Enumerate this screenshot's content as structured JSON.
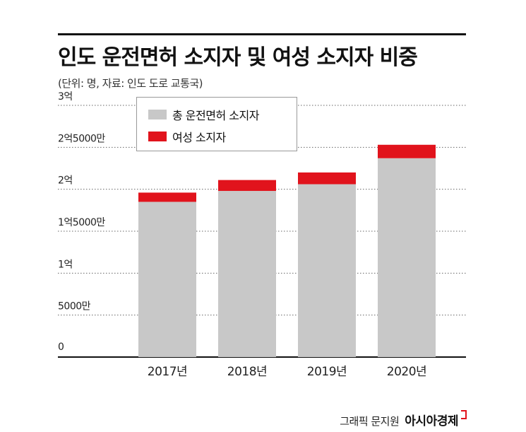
{
  "header": {
    "title": "인도 운전면허 소지자 및 여성 소지자 비중",
    "subtitle": "(단위: 명, 자료: 인도 도로 교통국)"
  },
  "legend": {
    "items": [
      {
        "label": "총 운전면허 소지자",
        "color": "#c8c8c8"
      },
      {
        "label": "여성 소지자",
        "color": "#e1131c"
      }
    ]
  },
  "chart_data": {
    "type": "bar",
    "stacked": true,
    "categories": [
      "2017년",
      "2018년",
      "2019년",
      "2020년"
    ],
    "series": [
      {
        "name": "총 운전면허 소지자",
        "color": "#c8c8c8",
        "values": [
          185000000,
          198000000,
          206000000,
          237000000
        ]
      },
      {
        "name": "여성 소지자",
        "color": "#e1131c",
        "values": [
          11000000,
          13000000,
          14000000,
          16000000
        ]
      }
    ],
    "ylim": [
      0,
      300000000
    ],
    "yticks": [
      {
        "value": 0,
        "label": "0"
      },
      {
        "value": 50000000,
        "label": "5000만"
      },
      {
        "value": 100000000,
        "label": "1억"
      },
      {
        "value": 150000000,
        "label": "1억5000만"
      },
      {
        "value": 200000000,
        "label": "2억"
      },
      {
        "value": 250000000,
        "label": "2억5000만"
      },
      {
        "value": 300000000,
        "label": "3억"
      }
    ],
    "grid": true,
    "legend_position": "top-left"
  },
  "credit": {
    "author": "그래픽 문지원",
    "brand": "아시아경제"
  }
}
